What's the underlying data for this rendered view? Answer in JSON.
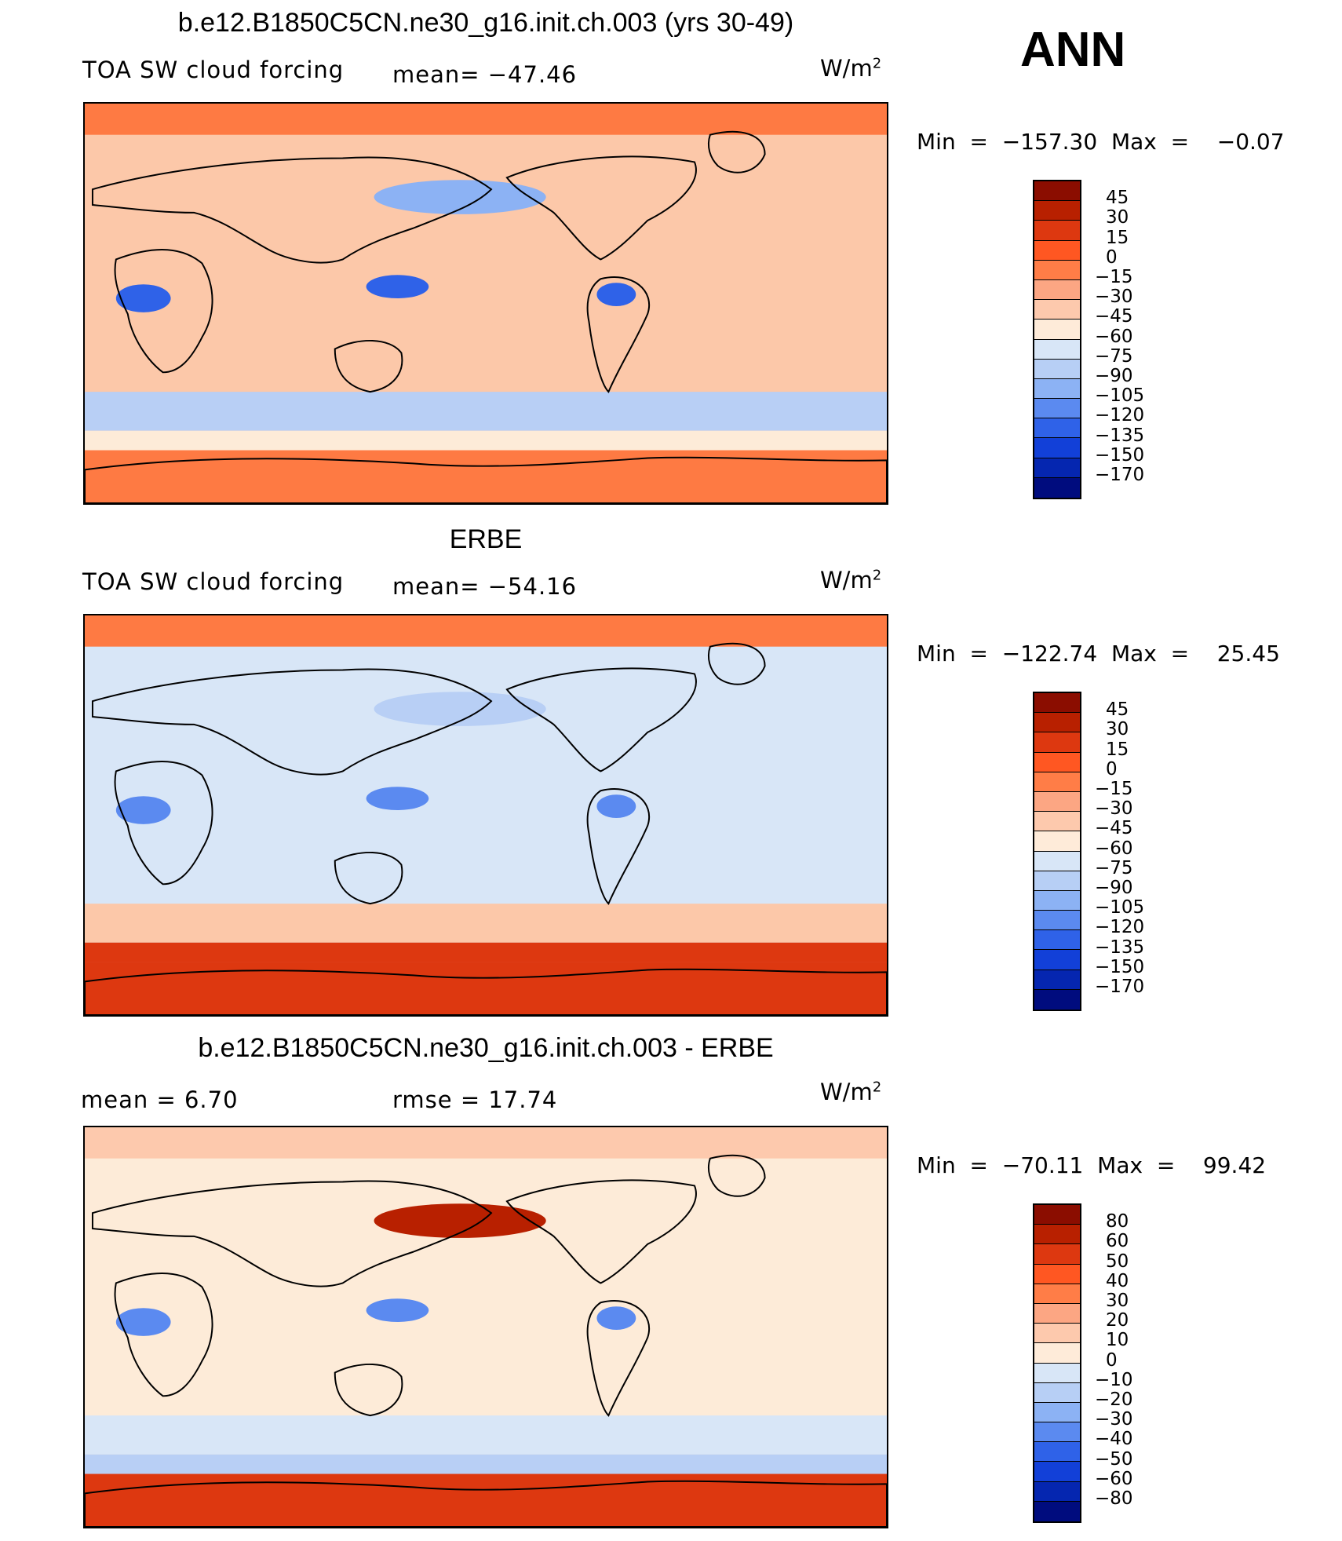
{
  "season": "ANN",
  "panels": [
    {
      "title": "b.e12.B1850C5CN.ne30_g16.init.ch.003 (yrs 30-49)",
      "left_label": "TOA SW cloud forcing",
      "center_label": "mean=  −47.46",
      "units_base": "W/m",
      "units_exp": "2",
      "minmax": "Min  =  −157.30  Max  =    −0.07",
      "colorbar": {
        "levels": [
          "45",
          "30",
          "15",
          "0",
          "−15",
          "−30",
          "−45",
          "−60",
          "−75",
          "−90",
          "−105",
          "−120",
          "−135",
          "−150",
          "−170"
        ],
        "colors": [
          "#8b0d00",
          "#b82000",
          "#dd3810",
          "#ff5722",
          "#ff7d47",
          "#fca683",
          "#fdc9ad",
          "#feebd9",
          "#d8e6f7",
          "#b7cff5",
          "#8cb2f4",
          "#5b8af0",
          "#2f62e8",
          "#1240d8",
          "#0526b0",
          "#000c7e"
        ]
      },
      "palette": {
        "base": "#fcc8a9",
        "ocean_bands": [
          "#fe7a43",
          "#fcc8a9",
          "#b8cff5",
          "#8cb2f4",
          "#fdebd8"
        ],
        "polar": "#fe7a43",
        "blue_spot": "#2f62e8"
      }
    },
    {
      "title": "ERBE",
      "left_label": "TOA SW cloud forcing",
      "center_label": "mean=  −54.16",
      "units_base": "W/m",
      "units_exp": "2",
      "minmax": "Min  =  −122.74  Max  =    25.45",
      "colorbar": {
        "levels": [
          "45",
          "30",
          "15",
          "0",
          "−15",
          "−30",
          "−45",
          "−60",
          "−75",
          "−90",
          "−105",
          "−120",
          "−135",
          "−150",
          "−170"
        ],
        "colors": [
          "#8b0d00",
          "#b82000",
          "#dd3810",
          "#ff5722",
          "#ff7d47",
          "#fca683",
          "#fdc9ad",
          "#feebd9",
          "#d8e6f7",
          "#b7cff5",
          "#8cb2f4",
          "#5b8af0",
          "#2f62e8",
          "#1240d8",
          "#0526b0",
          "#000c7e"
        ]
      },
      "palette": {
        "base": "#d8e6f7",
        "ocean_bands": [
          "#fe7a43",
          "#d8e6f7",
          "#fcc8a9",
          "#b8cff5",
          "#dd3810"
        ],
        "polar": "#dd3810",
        "blue_spot": "#5b8af0"
      }
    },
    {
      "title": "b.e12.B1850C5CN.ne30_g16.init.ch.003 - ERBE",
      "left_label": "mean  =     6.70",
      "center_label": "rmse  =    17.74",
      "units_base": "W/m",
      "units_exp": "2",
      "minmax": "Min  =  −70.11  Max  =    99.42",
      "colorbar": {
        "levels": [
          "80",
          "60",
          "50",
          "40",
          "30",
          "20",
          "10",
          "0",
          "−10",
          "−20",
          "−30",
          "−40",
          "−50",
          "−60",
          "−80"
        ],
        "colors": [
          "#8b0d00",
          "#b82000",
          "#dd3810",
          "#ff5722",
          "#ff7d47",
          "#fca683",
          "#fdc9ad",
          "#feebd9",
          "#d8e6f7",
          "#b7cff5",
          "#8cb2f4",
          "#5b8af0",
          "#2f62e8",
          "#1240d8",
          "#0526b0",
          "#000c7e"
        ]
      },
      "palette": {
        "base": "#fdebd8",
        "ocean_bands": [
          "#fdc9ad",
          "#fdebd8",
          "#d8e6f7",
          "#b82000",
          "#b8cff5"
        ],
        "polar": "#dd3810",
        "blue_spot": "#5b8af0"
      }
    }
  ]
}
